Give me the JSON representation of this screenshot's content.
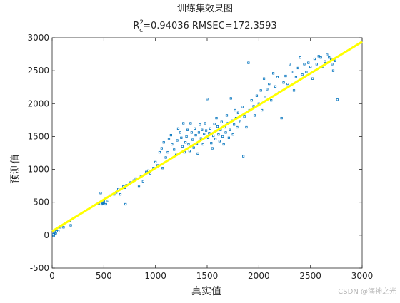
{
  "chart_data": {
    "type": "scatter",
    "title": "训练集效果图",
    "subtitle": {
      "r_main": "R",
      "r_sup": "2",
      "r_sub": "c",
      "rest": "=0.94036  RMSEC=172.3593"
    },
    "xlabel": "真实值",
    "ylabel": "预测值",
    "xlim": [
      0,
      3000
    ],
    "ylim": [
      -500,
      3000
    ],
    "xticks": [
      "0",
      "500",
      "1000",
      "1500",
      "2000",
      "2500",
      "3000"
    ],
    "yticks": [
      "-500",
      "0",
      "500",
      "1000",
      "1500",
      "2000",
      "2500",
      "3000"
    ],
    "grid": false,
    "series": [
      {
        "type": "scatter",
        "color": "#0072BD",
        "marker": "square",
        "points": [
          [
            10,
            10
          ],
          [
            20,
            40
          ],
          [
            25,
            60
          ],
          [
            30,
            20
          ],
          [
            40,
            80
          ],
          [
            15,
            -10
          ],
          [
            35,
            30
          ],
          [
            60,
            60
          ],
          [
            80,
            120
          ],
          [
            110,
            120
          ],
          [
            180,
            150
          ],
          [
            170,
            220
          ],
          [
            450,
            480
          ],
          [
            470,
            640
          ],
          [
            480,
            470
          ],
          [
            490,
            480
          ],
          [
            500,
            490
          ],
          [
            500,
            520
          ],
          [
            510,
            550
          ],
          [
            520,
            470
          ],
          [
            540,
            520
          ],
          [
            560,
            600
          ],
          [
            600,
            620
          ],
          [
            620,
            650
          ],
          [
            640,
            700
          ],
          [
            660,
            620
          ],
          [
            690,
            740
          ],
          [
            700,
            720
          ],
          [
            710,
            470
          ],
          [
            720,
            760
          ],
          [
            760,
            800
          ],
          [
            790,
            830
          ],
          [
            810,
            860
          ],
          [
            840,
            750
          ],
          [
            860,
            900
          ],
          [
            880,
            820
          ],
          [
            910,
            960
          ],
          [
            930,
            980
          ],
          [
            950,
            940
          ],
          [
            980,
            1020
          ],
          [
            1000,
            1110
          ],
          [
            1020,
            1060
          ],
          [
            1040,
            1260
          ],
          [
            1060,
            1320
          ],
          [
            1070,
            1020
          ],
          [
            1080,
            1410
          ],
          [
            1100,
            1180
          ],
          [
            1120,
            1260
          ],
          [
            1130,
            1460
          ],
          [
            1150,
            1520
          ],
          [
            1160,
            1380
          ],
          [
            1180,
            1300
          ],
          [
            1200,
            1220
          ],
          [
            1210,
            1440
          ],
          [
            1220,
            1620
          ],
          [
            1240,
            1560
          ],
          [
            1250,
            1480
          ],
          [
            1260,
            1350
          ],
          [
            1270,
            1700
          ],
          [
            1280,
            1260
          ],
          [
            1290,
            1410
          ],
          [
            1300,
            1500
          ],
          [
            1310,
            1600
          ],
          [
            1320,
            1380
          ],
          [
            1330,
            1280
          ],
          [
            1340,
            1700
          ],
          [
            1350,
            1560
          ],
          [
            1360,
            1450
          ],
          [
            1370,
            1330
          ],
          [
            1380,
            1620
          ],
          [
            1390,
            1520
          ],
          [
            1400,
            1390
          ],
          [
            1410,
            1240
          ],
          [
            1420,
            1560
          ],
          [
            1430,
            1680
          ],
          [
            1440,
            1470
          ],
          [
            1450,
            1600
          ],
          [
            1460,
            1380
          ],
          [
            1470,
            1540
          ],
          [
            1480,
            1700
          ],
          [
            1490,
            1590
          ],
          [
            1500,
            2070
          ],
          [
            1510,
            1480
          ],
          [
            1520,
            1550
          ],
          [
            1530,
            1620
          ],
          [
            1540,
            1400
          ],
          [
            1550,
            1320
          ],
          [
            1560,
            1510
          ],
          [
            1570,
            1690
          ],
          [
            1580,
            1460
          ],
          [
            1590,
            1780
          ],
          [
            1600,
            1650
          ],
          [
            1610,
            1530
          ],
          [
            1620,
            1430
          ],
          [
            1630,
            1600
          ],
          [
            1640,
            1720
          ],
          [
            1650,
            1500
          ],
          [
            1660,
            1380
          ],
          [
            1670,
            1640
          ],
          [
            1680,
            1560
          ],
          [
            1690,
            1820
          ],
          [
            1700,
            1700
          ],
          [
            1710,
            1480
          ],
          [
            1720,
            1600
          ],
          [
            1730,
            2080
          ],
          [
            1740,
            1740
          ],
          [
            1750,
            1530
          ],
          [
            1760,
            1680
          ],
          [
            1770,
            1900
          ],
          [
            1780,
            1780
          ],
          [
            1790,
            1640
          ],
          [
            1800,
            1860
          ],
          [
            1820,
            1720
          ],
          [
            1840,
            1950
          ],
          [
            1850,
            1200
          ],
          [
            1860,
            1800
          ],
          [
            1880,
            1640
          ],
          [
            1900,
            2620
          ],
          [
            1910,
            1900
          ],
          [
            1930,
            2050
          ],
          [
            1950,
            1960
          ],
          [
            1960,
            1820
          ],
          [
            1980,
            2120
          ],
          [
            2000,
            2000
          ],
          [
            2020,
            2200
          ],
          [
            2030,
            1900
          ],
          [
            2050,
            2380
          ],
          [
            2060,
            2100
          ],
          [
            2080,
            2220
          ],
          [
            2100,
            2300
          ],
          [
            2120,
            2050
          ],
          [
            2140,
            2460
          ],
          [
            2160,
            2260
          ],
          [
            2180,
            2400
          ],
          [
            2200,
            2180
          ],
          [
            2220,
            1780
          ],
          [
            2240,
            2320
          ],
          [
            2260,
            2420
          ],
          [
            2280,
            2300
          ],
          [
            2300,
            2600
          ],
          [
            2320,
            2480
          ],
          [
            2340,
            2200
          ],
          [
            2360,
            2400
          ],
          [
            2380,
            2540
          ],
          [
            2400,
            2700
          ],
          [
            2420,
            2440
          ],
          [
            2440,
            2600
          ],
          [
            2460,
            2480
          ],
          [
            2480,
            2620
          ],
          [
            2500,
            2560
          ],
          [
            2520,
            2380
          ],
          [
            2540,
            2680
          ],
          [
            2560,
            2600
          ],
          [
            2580,
            2720
          ],
          [
            2600,
            2700
          ],
          [
            2620,
            2560
          ],
          [
            2640,
            2640
          ],
          [
            2660,
            2740
          ],
          [
            2680,
            2700
          ],
          [
            2700,
            2680
          ],
          [
            2710,
            2600
          ],
          [
            2720,
            2500
          ],
          [
            2740,
            2650
          ],
          [
            2760,
            2060
          ]
        ]
      },
      {
        "type": "line",
        "color": "#FFFF00",
        "points": [
          [
            0,
            60
          ],
          [
            3000,
            2940
          ]
        ]
      }
    ]
  },
  "watermark": "CSDN @海神之光"
}
